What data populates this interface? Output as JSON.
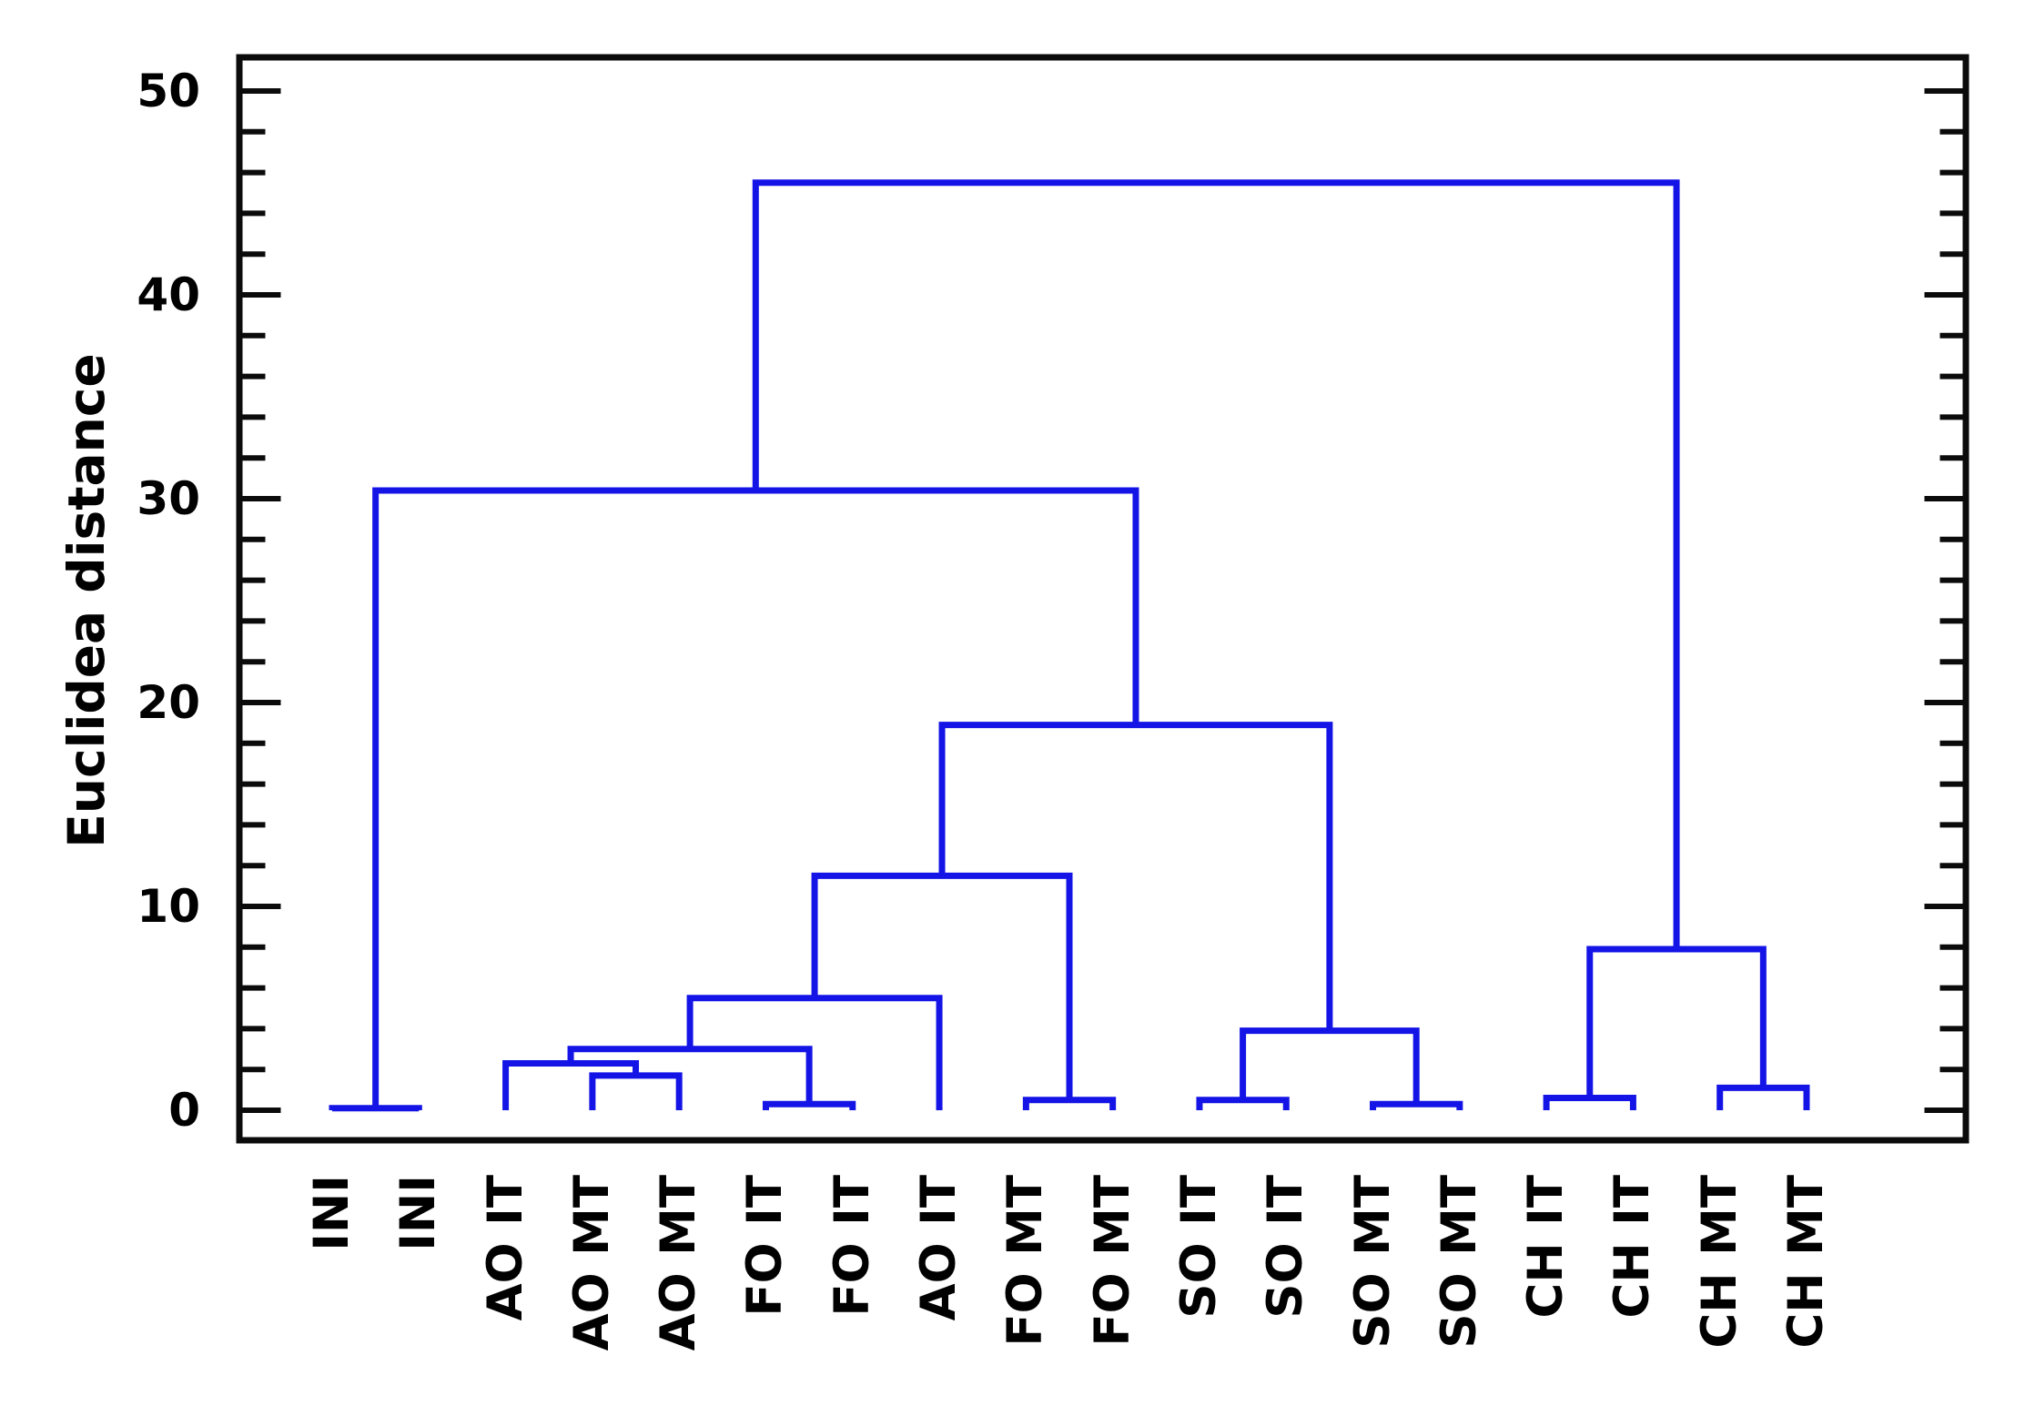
{
  "chart_data": {
    "type": "dendrogram",
    "title": "",
    "ylabel": "Euclidea distance",
    "xlabel": "",
    "ylim": [
      0,
      51.5
    ],
    "y_major_ticks": [
      0,
      10,
      20,
      30,
      40,
      50
    ],
    "y_minor_step": 2,
    "grid": false,
    "legend": "none",
    "line_color": "#1414e6",
    "frame_color": "#0b0b0b",
    "text_color": "#000000",
    "leaves": [
      "INI",
      "INI",
      "AO IT",
      "AO MT",
      "AO MT",
      "FO IT",
      "FO IT",
      "AO IT",
      "FO MT",
      "FO MT",
      "SO IT",
      "SO IT",
      "SO MT",
      "SO MT",
      "CH IT",
      "CH IT",
      "CH MT",
      "CH MT"
    ],
    "linkage": [
      {
        "id": "INI-pair",
        "children": [
          0,
          1
        ],
        "height": 0.1
      },
      {
        "id": "AOMT-pair",
        "children": [
          3,
          4
        ],
        "height": 1.7
      },
      {
        "id": "AO-sub",
        "children": [
          2,
          "AOMT-pair"
        ],
        "height": 2.3
      },
      {
        "id": "FOIT-pair",
        "children": [
          5,
          6
        ],
        "height": 0.3
      },
      {
        "id": "AO-FOIT",
        "children": [
          "AO-sub",
          "FOIT-pair"
        ],
        "height": 3.0
      },
      {
        "id": "AO-FOIT-AOIT",
        "children": [
          "AO-FOIT",
          7
        ],
        "height": 5.5
      },
      {
        "id": "FOMT-pair",
        "children": [
          8,
          9
        ],
        "height": 0.5
      },
      {
        "id": "AF-chain",
        "children": [
          "AO-FOIT-AOIT",
          "FOMT-pair"
        ],
        "height": 11.5
      },
      {
        "id": "SOIT-pair",
        "children": [
          10,
          11
        ],
        "height": 0.5
      },
      {
        "id": "SOMT-pair",
        "children": [
          12,
          13
        ],
        "height": 0.3
      },
      {
        "id": "SO-cluster",
        "children": [
          "SOIT-pair",
          "SOMT-pair"
        ],
        "height": 3.9
      },
      {
        "id": "mid-cluster",
        "children": [
          "AF-chain",
          "SO-cluster"
        ],
        "height": 18.9
      },
      {
        "id": "left-cluster",
        "children": [
          "INI-pair",
          "mid-cluster"
        ],
        "height": 30.4
      },
      {
        "id": "CHIT-pair",
        "children": [
          14,
          15
        ],
        "height": 0.6
      },
      {
        "id": "CHMT-pair",
        "children": [
          16,
          17
        ],
        "height": 1.1
      },
      {
        "id": "CH-cluster",
        "children": [
          "CHIT-pair",
          "CHMT-pair"
        ],
        "height": 7.9
      },
      {
        "id": "root",
        "children": [
          "left-cluster",
          "CH-cluster"
        ],
        "height": 45.5
      }
    ]
  }
}
